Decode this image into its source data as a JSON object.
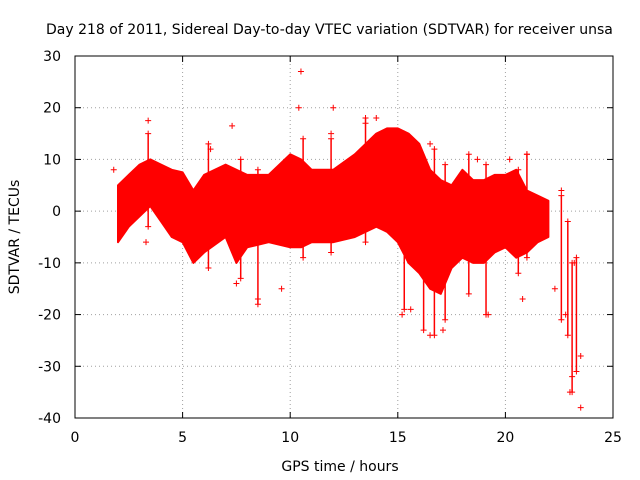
{
  "chart_data": {
    "type": "scatter",
    "title": "Day 218 of 2011, Sidereal Day-to-day VTEC variation (SDTVAR) for receiver unsa",
    "xlabel": "GPS time / hours",
    "ylabel": "SDTVAR / TECUs",
    "xlim": [
      0,
      25
    ],
    "ylim": [
      -40,
      30
    ],
    "xticks": [
      0,
      5,
      10,
      15,
      20,
      25
    ],
    "yticks": [
      -40,
      -30,
      -20,
      -10,
      0,
      10,
      20,
      30
    ],
    "grid": true,
    "color": "#ff0000",
    "marker": "+",
    "band": {
      "x": [
        2.0,
        2.5,
        3.0,
        3.5,
        4.0,
        4.5,
        5.0,
        5.5,
        6.0,
        7.0,
        7.5,
        8.0,
        9.0,
        10.0,
        10.5,
        11.0,
        12.0,
        13.0,
        14.0,
        14.5,
        15.0,
        15.5,
        16.0,
        16.5,
        17.0,
        17.5,
        18.0,
        18.5,
        19.0,
        19.5,
        20.0,
        20.5,
        21.0,
        21.5,
        22.0
      ],
      "upper": [
        5,
        7,
        9,
        10,
        9,
        8,
        7.5,
        4,
        7,
        9,
        8,
        7,
        7,
        11,
        10,
        8,
        8,
        11,
        15,
        16,
        16,
        15,
        13,
        8,
        6,
        5,
        8,
        6,
        6,
        7,
        7,
        8,
        4,
        3,
        2
      ],
      "lower": [
        -6,
        -3,
        -1,
        1,
        -2,
        -5,
        -6,
        -10,
        -8,
        -5,
        -10,
        -7,
        -6,
        -7,
        -7,
        -6,
        -6,
        -5,
        -3,
        -4,
        -6,
        -10,
        -12,
        -15,
        -16,
        -11,
        -9,
        -10,
        -10,
        -8,
        -7,
        -9,
        -8,
        -6,
        -5
      ]
    },
    "points": [
      {
        "x": 10.5,
        "y": 27
      },
      {
        "x": 10.4,
        "y": 20
      },
      {
        "x": 12.0,
        "y": 20
      },
      {
        "x": 3.4,
        "y": 17.5
      },
      {
        "x": 7.3,
        "y": 16.5
      },
      {
        "x": 13.5,
        "y": 17
      },
      {
        "x": 14.0,
        "y": 18
      },
      {
        "x": 11.9,
        "y": 15
      },
      {
        "x": 3.3,
        "y": -6
      },
      {
        "x": 7.5,
        "y": -14
      },
      {
        "x": 8.5,
        "y": -17
      },
      {
        "x": 9.6,
        "y": -15
      },
      {
        "x": 15.2,
        "y": -20
      },
      {
        "x": 15.6,
        "y": -19
      },
      {
        "x": 16.5,
        "y": -24
      },
      {
        "x": 17.1,
        "y": -23
      },
      {
        "x": 19.2,
        "y": -20
      },
      {
        "x": 20.8,
        "y": -17
      },
      {
        "x": 22.6,
        "y": 4
      },
      {
        "x": 22.8,
        "y": -20
      },
      {
        "x": 23.1,
        "y": -32
      },
      {
        "x": 23.0,
        "y": -35
      },
      {
        "x": 23.5,
        "y": -28
      },
      {
        "x": 23.5,
        "y": -38
      },
      {
        "x": 22.3,
        "y": -15
      },
      {
        "x": 23.2,
        "y": -10
      },
      {
        "x": 21.0,
        "y": 11
      },
      {
        "x": 1.8,
        "y": 8
      },
      {
        "x": 6.3,
        "y": 12
      },
      {
        "x": 16.5,
        "y": 13
      },
      {
        "x": 18.7,
        "y": 10
      },
      {
        "x": 20.2,
        "y": 10
      }
    ],
    "spikes": [
      {
        "x": 3.4,
        "lo": -3,
        "hi": 15
      },
      {
        "x": 6.2,
        "lo": -11,
        "hi": 13
      },
      {
        "x": 7.7,
        "lo": -13,
        "hi": 10
      },
      {
        "x": 8.5,
        "lo": -18,
        "hi": 8
      },
      {
        "x": 10.6,
        "lo": -9,
        "hi": 14
      },
      {
        "x": 11.9,
        "lo": -8,
        "hi": 14
      },
      {
        "x": 13.5,
        "lo": -6,
        "hi": 18
      },
      {
        "x": 15.3,
        "lo": -19,
        "hi": 15
      },
      {
        "x": 16.2,
        "lo": -23,
        "hi": 10
      },
      {
        "x": 16.7,
        "lo": -24,
        "hi": 12
      },
      {
        "x": 17.2,
        "lo": -21,
        "hi": 9
      },
      {
        "x": 18.3,
        "lo": -16,
        "hi": 11
      },
      {
        "x": 19.1,
        "lo": -20,
        "hi": 9
      },
      {
        "x": 20.6,
        "lo": -12,
        "hi": 8
      },
      {
        "x": 21.0,
        "lo": -9,
        "hi": 11
      },
      {
        "x": 22.6,
        "lo": -21,
        "hi": 3
      },
      {
        "x": 22.9,
        "lo": -24,
        "hi": -2
      },
      {
        "x": 23.1,
        "lo": -35,
        "hi": -10
      },
      {
        "x": 23.3,
        "lo": -31,
        "hi": -9
      }
    ]
  }
}
